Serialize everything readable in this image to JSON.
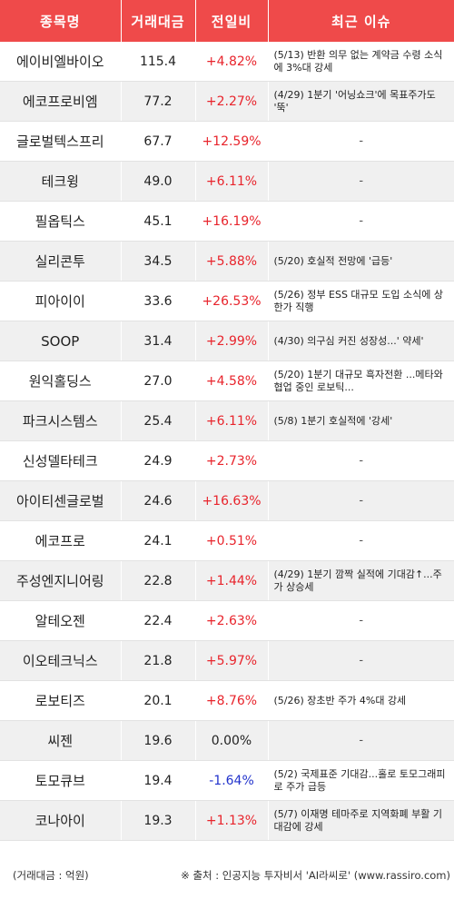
{
  "header": {
    "col_name": "종목명",
    "col_volume": "거래대금",
    "col_change": "전일비",
    "col_issue": "최근 이슈"
  },
  "rows": [
    {
      "name": "에이비엘바이오",
      "volume": "115.4",
      "change": "+4.82%",
      "direction": "up",
      "issue": "(5/13) 반환 의무 없는 계약금 수령 소식에 3%대 강세"
    },
    {
      "name": "에코프로비엠",
      "volume": "77.2",
      "change": "+2.27%",
      "direction": "up",
      "issue": "(4/29) 1분기 '어닝쇼크'에 목표주가도 '뚝'"
    },
    {
      "name": "글로벌텍스프리",
      "volume": "67.7",
      "change": "+12.59%",
      "direction": "up",
      "issue": "-"
    },
    {
      "name": "테크윙",
      "volume": "49.0",
      "change": "+6.11%",
      "direction": "up",
      "issue": "-"
    },
    {
      "name": "필옵틱스",
      "volume": "45.1",
      "change": "+16.19%",
      "direction": "up",
      "issue": "-"
    },
    {
      "name": "실리콘투",
      "volume": "34.5",
      "change": "+5.88%",
      "direction": "up",
      "issue": "(5/20) 호실적 전망에 '급등'"
    },
    {
      "name": "피아이이",
      "volume": "33.6",
      "change": "+26.53%",
      "direction": "up",
      "issue": "(5/26) 정부 ESS 대규모 도입 소식에 상한가 직행"
    },
    {
      "name": "SOOP",
      "volume": "31.4",
      "change": "+2.99%",
      "direction": "up",
      "issue": "(4/30) 의구심 커진 성장성...' 약세'"
    },
    {
      "name": "원익홀딩스",
      "volume": "27.0",
      "change": "+4.58%",
      "direction": "up",
      "issue": "(5/20) 1분기 대규모 흑자전환 ...메타와 협업 중인 로보틱..."
    },
    {
      "name": "파크시스템스",
      "volume": "25.4",
      "change": "+6.11%",
      "direction": "up",
      "issue": "(5/8) 1분기 호실적에 '강세'"
    },
    {
      "name": "신성델타테크",
      "volume": "24.9",
      "change": "+2.73%",
      "direction": "up",
      "issue": "-"
    },
    {
      "name": "아이티센글로벌",
      "volume": "24.6",
      "change": "+16.63%",
      "direction": "up",
      "issue": "-"
    },
    {
      "name": "에코프로",
      "volume": "24.1",
      "change": "+0.51%",
      "direction": "up",
      "issue": "-"
    },
    {
      "name": "주성엔지니어링",
      "volume": "22.8",
      "change": "+1.44%",
      "direction": "up",
      "issue": "(4/29) 1분기 깜짝 실적에 기대감↑...주가 상승세"
    },
    {
      "name": "알테오젠",
      "volume": "22.4",
      "change": "+2.63%",
      "direction": "up",
      "issue": "-"
    },
    {
      "name": "이오테크닉스",
      "volume": "21.8",
      "change": "+5.97%",
      "direction": "up",
      "issue": "-"
    },
    {
      "name": "로보티즈",
      "volume": "20.1",
      "change": "+8.76%",
      "direction": "up",
      "issue": "(5/26) 장초반 주가 4%대 강세"
    },
    {
      "name": "씨젠",
      "volume": "19.6",
      "change": "0.00%",
      "direction": "flat",
      "issue": "-"
    },
    {
      "name": "토모큐브",
      "volume": "19.4",
      "change": "-1.64%",
      "direction": "down",
      "issue": "(5/2) 국제표준 기대감...홀로 토모그래피로 주가 급등"
    },
    {
      "name": "코나아이",
      "volume": "19.3",
      "change": "+1.13%",
      "direction": "up",
      "issue": "(5/7) 이재명 테마주로 지역화폐 부활 기대감에 강세"
    }
  ],
  "footer": {
    "unit_note": "(거래대금 : 억원)",
    "source_note": "※ 출처 : 인공지능 투자비서 'AI라씨로' (www.rassiro.com)"
  },
  "colors": {
    "header_bg": "#ef4a4a",
    "up": "#e8242c",
    "down": "#2233cc",
    "row_alt": "#f0f0f0"
  }
}
